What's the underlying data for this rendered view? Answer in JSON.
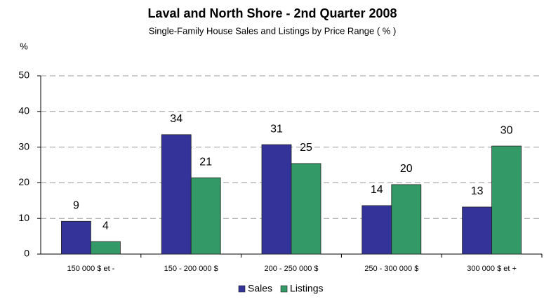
{
  "chart_data": {
    "type": "bar",
    "title": "Laval and North Shore -  2nd Quarter 2008",
    "subtitle": "Single-Family House Sales and Listings by Price Range ( % )",
    "y_label": "%",
    "categories": [
      "150 000 $ et -",
      "150 - 200 000 $",
      "200 - 250 000 $",
      "250 - 300 000 $",
      "300 000 $ et +"
    ],
    "series": [
      {
        "name": "Sales",
        "color": "#333399",
        "values": [
          9.2,
          33.5,
          30.7,
          13.6,
          13.2
        ],
        "value_labels": [
          "9",
          "34",
          "31",
          "14",
          "13"
        ]
      },
      {
        "name": "Listings",
        "color": "#339966",
        "values": [
          3.5,
          21.4,
          25.4,
          19.5,
          30.3
        ],
        "value_labels": [
          "4",
          "21",
          "25",
          "20",
          "30"
        ]
      }
    ],
    "ylim": [
      0,
      50
    ],
    "yticks": [
      0,
      10,
      20,
      30,
      40,
      50
    ],
    "grid": true,
    "legend": "bottom"
  }
}
